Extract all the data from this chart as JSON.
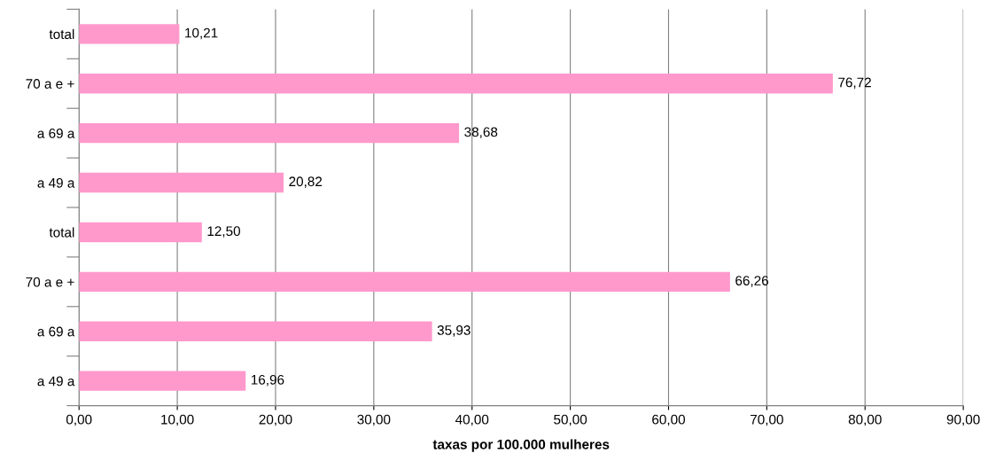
{
  "chart_data": {
    "type": "bar",
    "orientation": "horizontal",
    "xlabel": "taxas por 100.000 mulheres",
    "categories": [
      "total",
      "70 a e +",
      "a 69 a",
      "a 49 a",
      "total",
      "70 a e +",
      "a 69 a",
      "a 49 a"
    ],
    "values": [
      10.21,
      76.72,
      38.68,
      20.82,
      12.5,
      66.26,
      35.93,
      16.96
    ],
    "value_labels": [
      "10,21",
      "76,72",
      "38,68",
      "20,82",
      "12,50",
      "66,26",
      "35,93",
      "16,96"
    ],
    "color": "#ff99cc",
    "xlim": [
      0,
      90
    ],
    "xticks": [
      {
        "value": 0,
        "label": "0,00"
      },
      {
        "value": 10,
        "label": "10,00"
      },
      {
        "value": 20,
        "label": "20,00"
      },
      {
        "value": 30,
        "label": "30,00"
      },
      {
        "value": 40,
        "label": "40,00"
      },
      {
        "value": 50,
        "label": "50,00"
      },
      {
        "value": 60,
        "label": "60,00"
      },
      {
        "value": 70,
        "label": "70,00"
      },
      {
        "value": 80,
        "label": "80,00"
      },
      {
        "value": 90,
        "label": "90,00"
      }
    ],
    "grid": "x"
  }
}
